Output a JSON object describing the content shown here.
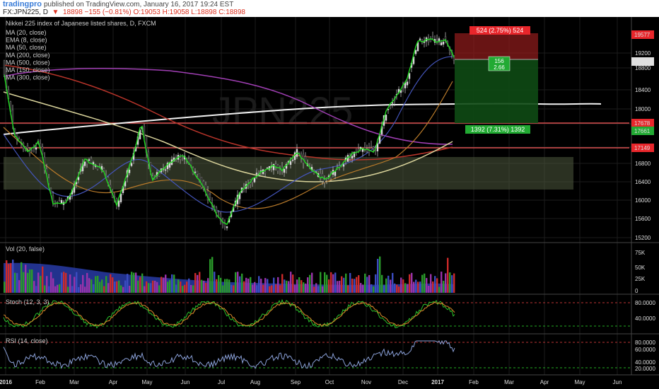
{
  "header": {
    "logo": "tradingpro",
    "published": "published on TradingView.com, January 16, 2017 19:24 EST",
    "symbol": "FX:JPN225, D",
    "last": "18898",
    "change": "−155 (−0.81%)",
    "ohlc": {
      "o": "O:19053",
      "h": "H:19058",
      "l": "L:18898",
      "c": "C:18898"
    }
  },
  "main_pane": {
    "title": "Nikkei 225 index of Japanese listed shares, D, FXCM",
    "indicators": [
      "MA (20, close)",
      "EMA (8, close)",
      "MA (50, close)",
      "MA (200, close)",
      "MA (500, close)",
      "MA (150, close)",
      "MA (300, close)"
    ],
    "watermark": "JPN225",
    "y_ticks": [
      "19200",
      "18800",
      "18400",
      "18000",
      "17600",
      "17200",
      "16800",
      "16400",
      "16000",
      "15600",
      "15200"
    ],
    "price_labels": [
      {
        "text": "19577",
        "color": "#e8262b"
      },
      {
        "text": "19053",
        "color": "#dddddd"
      },
      {
        "text": "17678",
        "color": "#e8262b"
      },
      {
        "text": "17661",
        "color": "#22aa33"
      },
      {
        "text": "17149",
        "color": "#e8262b"
      }
    ],
    "position_tool": {
      "top_label": "524 (2.75%) 524",
      "mid_label_1": "156",
      "mid_label_2": "2.66",
      "bottom_label": "1392 (7.31%) 1392"
    }
  },
  "volume_pane": {
    "title": "Vol (20, false)",
    "y_ticks": [
      "75K",
      "50K",
      "25K",
      "0"
    ]
  },
  "stoch_pane": {
    "title": "Stoch (12, 3, 3)",
    "y_ticks": [
      "80.0000",
      "40.0000"
    ]
  },
  "rsi_pane": {
    "title": "RSI (14, close)",
    "y_ticks": [
      "80.0000",
      "60.0000",
      "40.0000",
      "20.0000"
    ]
  },
  "x_axis": {
    "labels": [
      "2016",
      "Feb",
      "Mar",
      "Apr",
      "May",
      "Jun",
      "Jul",
      "Aug",
      "Sep",
      "Oct",
      "Nov",
      "Dec",
      "2017",
      "Feb",
      "Mar",
      "Apr",
      "May",
      "Jun"
    ]
  }
}
